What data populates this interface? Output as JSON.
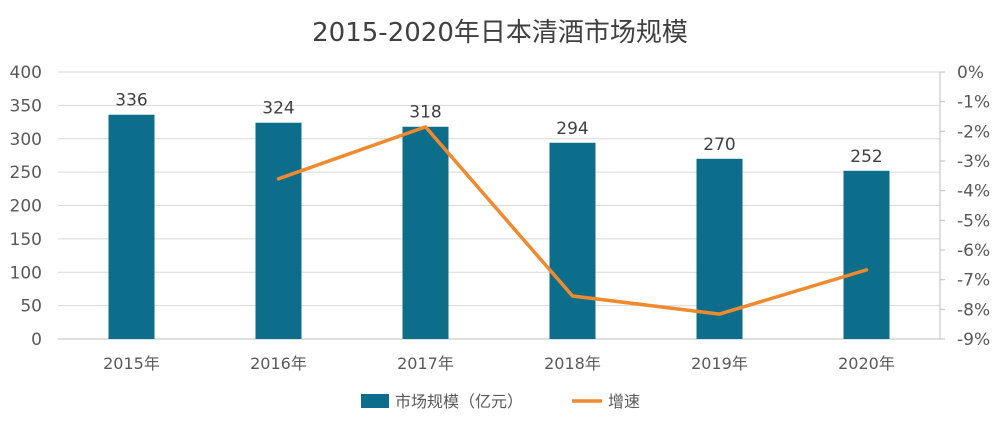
{
  "chart_data": {
    "type": "bar",
    "title": "2015-2020年日本清酒市场规模",
    "categories": [
      "2015年",
      "2016年",
      "2017年",
      "2018年",
      "2019年",
      "2020年"
    ],
    "series": [
      {
        "name": "市场规模（亿元）",
        "type": "bar",
        "axis": "left",
        "values": [
          336,
          324,
          318,
          294,
          270,
          252
        ],
        "data_labels": [
          "336",
          "324",
          "318",
          "294",
          "270",
          "252"
        ],
        "color": "#0c6e8a"
      },
      {
        "name": "增速",
        "type": "line",
        "axis": "right",
        "values": [
          null,
          -3.6,
          -1.85,
          -7.55,
          -8.16,
          -6.67
        ],
        "color": "#f08a2e"
      }
    ],
    "y_left": {
      "ylim": [
        0,
        400
      ],
      "ticks": [
        0,
        50,
        100,
        150,
        200,
        250,
        300,
        350,
        400
      ],
      "tick_labels": [
        "0",
        "50",
        "100",
        "150",
        "200",
        "250",
        "300",
        "350",
        "400"
      ]
    },
    "y_right": {
      "ylim": [
        -9,
        0
      ],
      "ticks": [
        0,
        -1,
        -2,
        -3,
        -4,
        -5,
        -6,
        -7,
        -8,
        -9
      ],
      "tick_labels": [
        "0%",
        "-1%",
        "-2%",
        "-3%",
        "-4%",
        "-5%",
        "-6%",
        "-7%",
        "-8%",
        "-9%"
      ]
    },
    "grid": true,
    "legend_position": "bottom"
  }
}
